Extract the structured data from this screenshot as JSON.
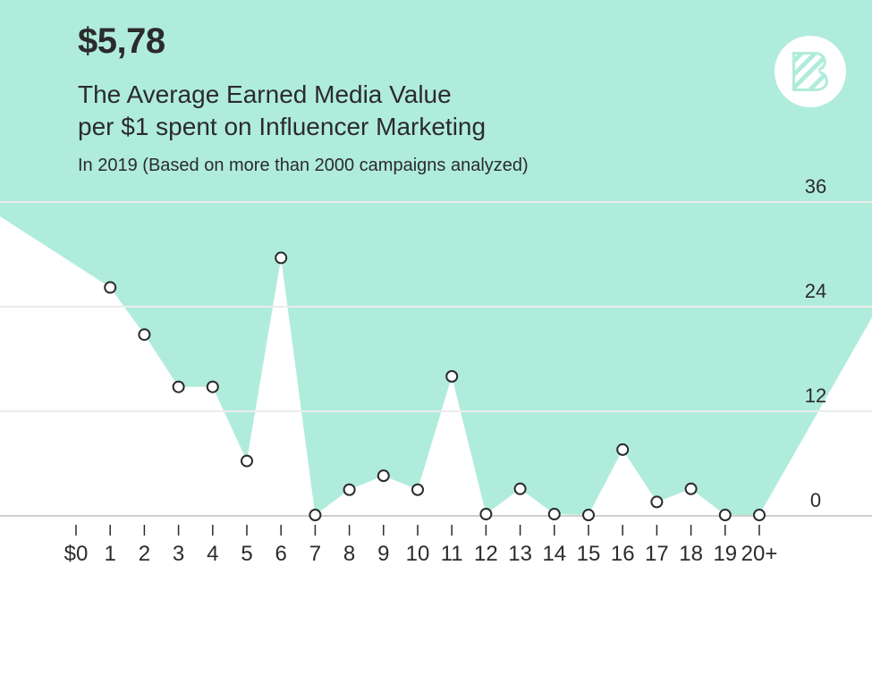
{
  "headline": "$5,78",
  "subtitle_line1": "The Average Earned Media Value",
  "subtitle_line2": "per $1 spent on Influencer Marketing",
  "note": "In 2019 (Based on more than 2000 campaigns analyzed)",
  "colors": {
    "area": "#b0ecdc",
    "grid": "#d2d2d2",
    "text": "#2b2b2b",
    "point_stroke": "#2b2b2b",
    "point_fill": "#ffffff"
  },
  "logo": "brand-logo-icon",
  "chart_data": {
    "type": "area",
    "title": "The Average Earned Media Value per $1 spent on Influencer Marketing",
    "xlabel": "",
    "ylabel": "",
    "ylim": [
      0,
      36
    ],
    "yticks": [
      0,
      12,
      24,
      36
    ],
    "ytick_labels": [
      "0",
      "12",
      "24",
      "36"
    ],
    "categories": [
      "$0",
      "1",
      "2",
      "3",
      "4",
      "5",
      "6",
      "7",
      "8",
      "9",
      "10",
      "11",
      "12",
      "13",
      "14",
      "15",
      "16",
      "17",
      "18",
      "19",
      "20+"
    ],
    "x": [
      1,
      2,
      3,
      4,
      5,
      6,
      7,
      8,
      9,
      10,
      11,
      12,
      13,
      14,
      15,
      16,
      17,
      18,
      19,
      20
    ],
    "values": [
      26.2,
      20.8,
      14.8,
      14.8,
      6.3,
      29.6,
      0.1,
      3.0,
      4.6,
      3.0,
      16.0,
      0.2,
      3.1,
      0.2,
      0.1,
      7.6,
      1.6,
      3.1,
      0.1,
      0.1
    ],
    "grid": true,
    "legend": "none"
  }
}
